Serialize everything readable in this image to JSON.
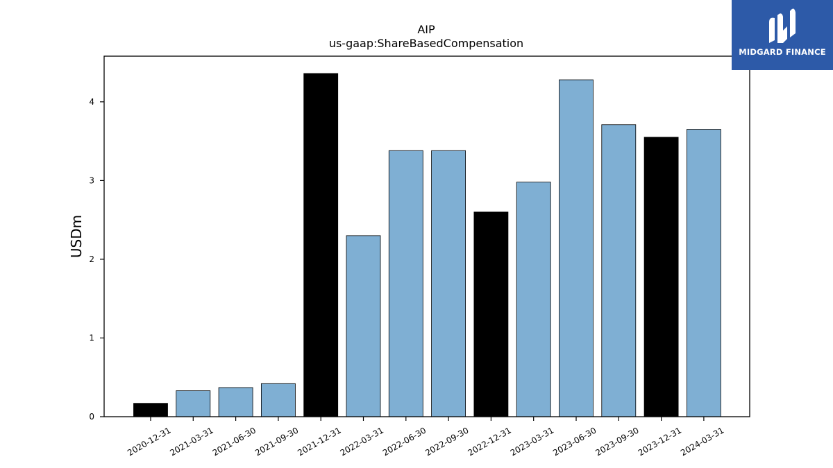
{
  "logo": {
    "text": "MIDGARD FINANCE",
    "icon": "midgard-logo-icon",
    "background": "#2d5aa8"
  },
  "chart_data": {
    "type": "bar",
    "title": "AIP",
    "subtitle": "us-gaap:ShareBasedCompensation",
    "xlabel": "",
    "ylabel": "USDm",
    "ylim": [
      0,
      4.58
    ],
    "yticks": [
      0,
      1,
      2,
      3,
      4
    ],
    "grid": false,
    "categories": [
      "2020-12-31",
      "2021-03-31",
      "2021-06-30",
      "2021-09-30",
      "2021-12-31",
      "2022-03-31",
      "2022-06-30",
      "2022-09-30",
      "2022-12-31",
      "2023-03-31",
      "2023-06-30",
      "2023-09-30",
      "2023-12-31",
      "2024-03-31"
    ],
    "values": [
      0.17,
      0.33,
      0.37,
      0.42,
      4.36,
      2.3,
      3.38,
      3.38,
      2.6,
      2.98,
      4.28,
      3.71,
      3.55,
      3.65
    ],
    "colors": {
      "quarter": "#7fafd3",
      "fiscal_year_end": "#000000",
      "edge": "#000000"
    },
    "bar_kinds": [
      "fiscal_year_end",
      "quarter",
      "quarter",
      "quarter",
      "fiscal_year_end",
      "quarter",
      "quarter",
      "quarter",
      "fiscal_year_end",
      "quarter",
      "quarter",
      "quarter",
      "fiscal_year_end",
      "quarter"
    ]
  }
}
